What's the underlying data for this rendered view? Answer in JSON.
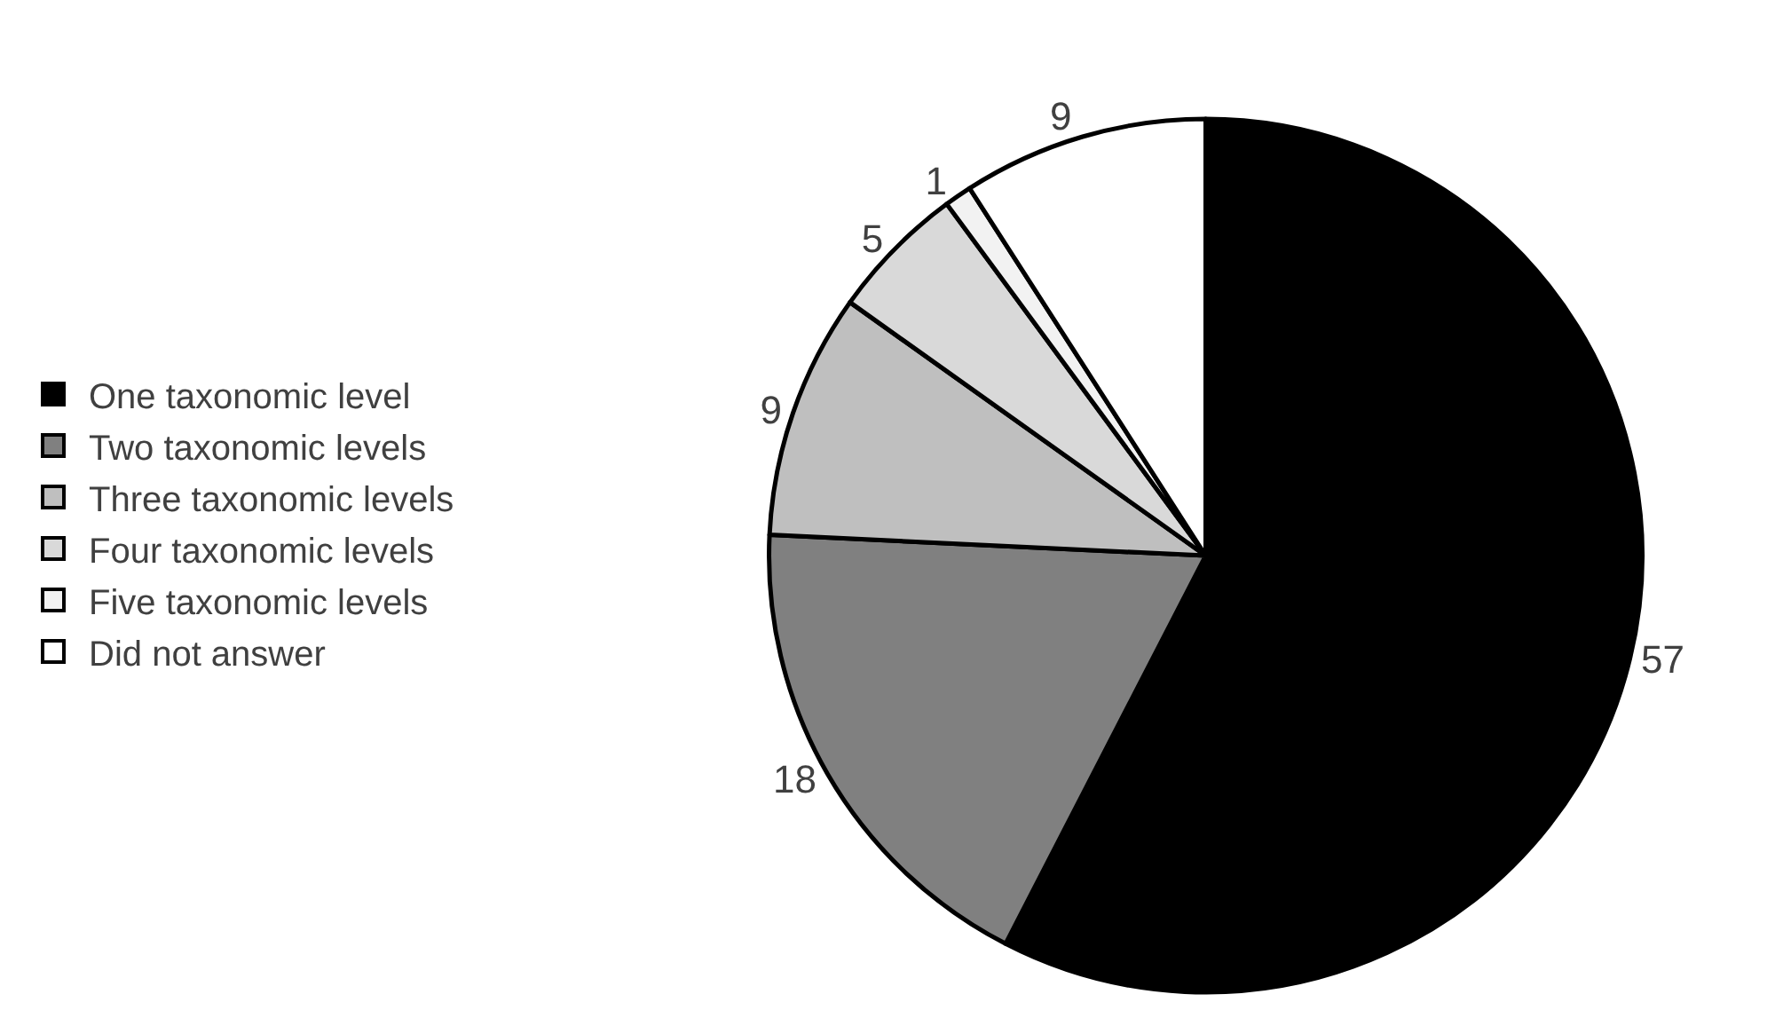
{
  "chart_data": {
    "type": "pie",
    "categories": [
      "One taxonomic level",
      "Two taxonomic levels",
      "Three taxonomic levels",
      "Four taxonomic levels",
      "Five taxonomic levels",
      "Did not answer"
    ],
    "values": [
      57,
      18,
      9,
      5,
      1,
      9
    ],
    "colors": [
      "#000000",
      "#808080",
      "#bfbfbf",
      "#d9d9d9",
      "#f2f2f2",
      "#ffffff"
    ],
    "data_labels": true,
    "legend": "left"
  }
}
